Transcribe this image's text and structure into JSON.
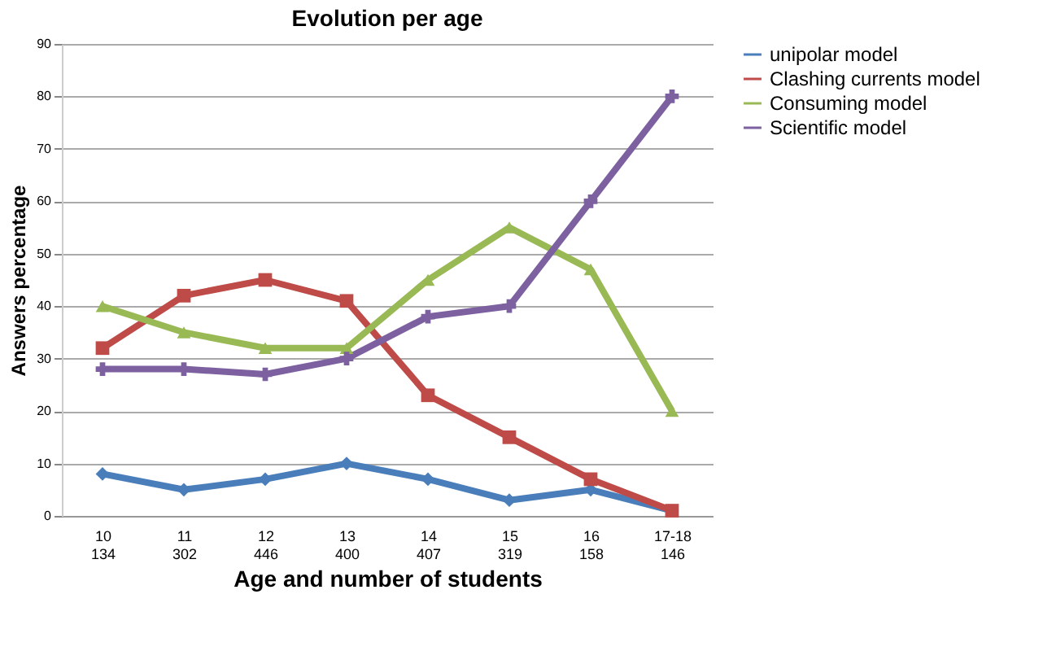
{
  "chart_data": {
    "type": "line",
    "title": "Evolution per age",
    "xlabel": "Age and number of students",
    "ylabel": "Answers percentage",
    "categories": [
      "10\n134",
      "11\n302",
      "12\n446",
      "13\n400",
      "14\n407",
      "15\n319",
      "16\n158",
      "17-18\n146"
    ],
    "series": [
      {
        "name": "unipolar model",
        "color": "#4a7ebb",
        "marker": "diamond",
        "values": [
          8,
          5,
          7,
          10,
          7,
          3,
          5,
          1
        ]
      },
      {
        "name": "Clashing currents model",
        "color": "#be4b48",
        "marker": "square",
        "values": [
          32,
          42,
          45,
          41,
          23,
          15,
          7,
          1
        ]
      },
      {
        "name": "Consuming model",
        "color": "#98b954",
        "marker": "triangle",
        "values": [
          40,
          35,
          32,
          32,
          45,
          55,
          47,
          20
        ]
      },
      {
        "name": "Scientific model",
        "color": "#7d60a0",
        "marker": "cross",
        "values": [
          28,
          28,
          27,
          30,
          38,
          40,
          60,
          80
        ]
      }
    ],
    "ylim": [
      0,
      90
    ],
    "yticks": [
      0,
      10,
      20,
      30,
      40,
      50,
      60,
      70,
      80,
      90
    ],
    "grid": "y",
    "legend": "right"
  }
}
